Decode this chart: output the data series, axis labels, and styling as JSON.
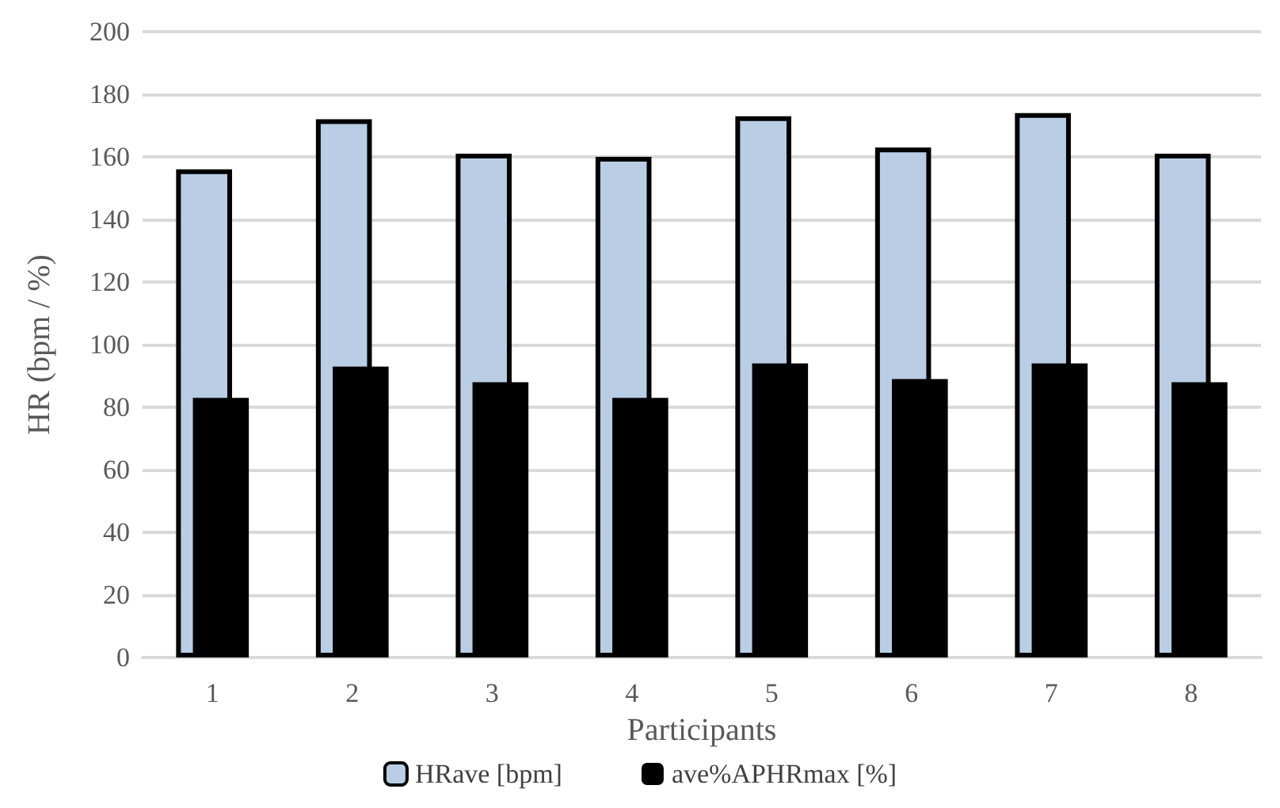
{
  "chart_data": {
    "type": "bar",
    "xlabel": "Participants",
    "ylabel": "HR (bpm / %)",
    "categories": [
      "1",
      "2",
      "3",
      "4",
      "5",
      "6",
      "7",
      "8"
    ],
    "series": [
      {
        "name": "HRave [bpm]",
        "color": "#b9cde5",
        "values": [
          156,
          172,
          161,
          160,
          173,
          163,
          174,
          161
        ]
      },
      {
        "name": "ave%APHRmax [%]",
        "color": "#000000",
        "values": [
          83,
          93,
          88,
          83,
          94,
          89,
          94,
          88
        ]
      }
    ],
    "ylim": [
      0,
      200
    ],
    "yticks": [
      0,
      20,
      40,
      60,
      80,
      100,
      120,
      140,
      160,
      180,
      200
    ],
    "grid": "y",
    "legend": "bottom"
  }
}
